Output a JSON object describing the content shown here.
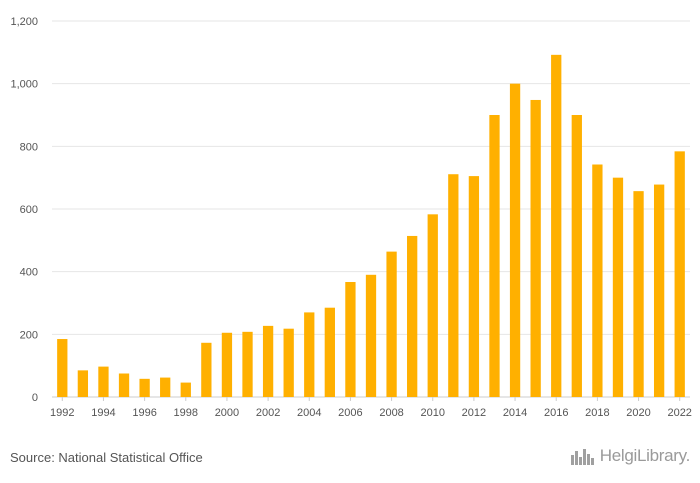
{
  "chart_data": {
    "type": "bar",
    "title": "",
    "xlabel": "",
    "ylabel": "",
    "ylim": [
      0,
      1200
    ],
    "yticks": [
      0,
      200,
      400,
      600,
      800,
      1000,
      1200
    ],
    "ytick_labels": [
      "0",
      "200",
      "400",
      "600",
      "800",
      "1,000",
      "1,200"
    ],
    "categories": [
      "1992",
      "1993",
      "1994",
      "1995",
      "1996",
      "1997",
      "1998",
      "1999",
      "2000",
      "2001",
      "2002",
      "2003",
      "2004",
      "2005",
      "2006",
      "2007",
      "2008",
      "2009",
      "2010",
      "2011",
      "2012",
      "2013",
      "2014",
      "2015",
      "2016",
      "2017",
      "2018",
      "2019",
      "2020",
      "2021",
      "2022"
    ],
    "xtick_labels": [
      "1992",
      "1994",
      "1996",
      "1998",
      "2000",
      "2002",
      "2004",
      "2006",
      "2008",
      "2010",
      "2012",
      "2014",
      "2016",
      "2018",
      "2020",
      "2022"
    ],
    "values": [
      185,
      85,
      97,
      75,
      58,
      62,
      46,
      173,
      205,
      208,
      227,
      218,
      270,
      285,
      367,
      390,
      464,
      514,
      583,
      711,
      705,
      900,
      1000,
      948,
      1092,
      900,
      742,
      700,
      657,
      678,
      784
    ],
    "bar_color": "#FFB000",
    "grid": true,
    "legend": "none"
  },
  "footer": {
    "source": "Source: National Statistical Office",
    "logo_text": "HelgiLibrary."
  }
}
